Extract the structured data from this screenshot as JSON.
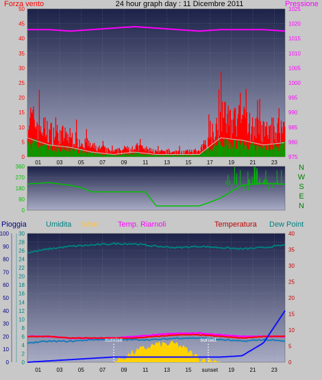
{
  "title": "24 hour graph day : 11 Dicembre 2011",
  "colors": {
    "bg": "#c8c8c8",
    "wind": "#ff0000",
    "gust": "#00a000",
    "avgwind": "#c8c8c8",
    "pressure": "#ff00ff",
    "direction": "#00c000",
    "rain": "#1010ff",
    "humidity": "#008080",
    "solar": "#ffd200",
    "feels": "#ff00ff",
    "temperature": "#ff0000",
    "dewpoint": "#1a7ab8",
    "compass": "#008000",
    "pioggia": "#000080"
  },
  "hour_ticks": [
    "01",
    "03",
    "05",
    "07",
    "09",
    "11",
    "13",
    "15",
    "17",
    "19",
    "21",
    "23"
  ],
  "bottom_hour_ticks": [
    "01",
    "03",
    "05",
    "07",
    "09",
    "11",
    "13",
    "15",
    "sunset",
    "19",
    "21",
    "23"
  ],
  "wind_panel": {
    "left_label": "Forza vento",
    "right_label": "Pressione",
    "left_axis": [
      "0",
      "5",
      "10",
      "15",
      "20",
      "25",
      "30",
      "35",
      "40",
      "45",
      "50"
    ],
    "right_axis": [
      "975",
      "980",
      "985",
      "990",
      "995",
      "1000",
      "1005",
      "1010",
      "1015",
      "1020",
      "1025"
    ],
    "pressure_avg": 1018
  },
  "direction_panel": {
    "left_axis": [
      "0",
      "90",
      "180",
      "270",
      "360"
    ],
    "compass": [
      "N",
      "W",
      "S",
      "E",
      "N"
    ]
  },
  "bottom_panel": {
    "labels": [
      "Pioggia",
      "Umidita",
      "Solar",
      "Temp. Riarnoli",
      "Temperatura",
      "Dew Point"
    ],
    "rain_axis": [
      "0",
      "10",
      "20",
      "30",
      "40",
      "50",
      "60",
      "70",
      "80",
      "90",
      "100"
    ],
    "rate_axis": [
      "0",
      "2",
      "4",
      "6",
      "8",
      "10",
      "12",
      "14",
      "16",
      "18",
      "20",
      "22",
      "24",
      "26",
      "28",
      "30"
    ],
    "temp_axis": [
      "0",
      "5",
      "10",
      "15",
      "20",
      "25",
      "30",
      "35",
      "40"
    ],
    "sunrise": "sunrise",
    "sunset": "sunset"
  },
  "chart_data": [
    {
      "type": "line",
      "title": "24 hour graph day : 11 Dicembre 2011",
      "ylabel": "Forza vento",
      "y2label": "Pressione",
      "ylim": [
        0,
        50
      ],
      "y2lim": [
        975,
        1025
      ],
      "x": [
        0,
        2,
        4,
        6,
        8,
        10,
        12,
        14,
        16,
        18,
        20,
        22,
        24
      ],
      "series": [
        {
          "name": "Forza vento",
          "values": [
            8,
            5,
            4,
            2,
            1,
            2,
            1,
            1,
            1,
            8,
            7,
            5,
            6
          ]
        },
        {
          "name": "Pressione",
          "values": [
            1018,
            1018,
            1017.5,
            1018,
            1018.5,
            1019,
            1018.5,
            1018,
            1017.5,
            1018,
            1018,
            1018,
            1017.5
          ]
        }
      ]
    },
    {
      "type": "line",
      "ylim": [
        0,
        360
      ],
      "x": [
        0,
        2,
        4,
        5,
        6,
        8,
        10,
        11,
        12,
        14,
        16,
        17,
        18,
        20,
        22,
        24
      ],
      "series": [
        {
          "values": [
            225,
            220,
            205,
            185,
            150,
            150,
            150,
            150,
            35,
            35,
            35,
            65,
            100,
            210,
            220,
            215
          ]
        }
      ]
    },
    {
      "type": "line",
      "ylabel": "Pioggia",
      "y2label": "Temperatura",
      "ylim": [
        0,
        100
      ],
      "y2lim": [
        0,
        40
      ],
      "x": [
        0,
        2,
        4,
        6,
        8,
        10,
        12,
        14,
        16,
        18,
        20,
        22,
        24
      ],
      "series": [
        {
          "name": "Umidita",
          "values": [
            85,
            88,
            90,
            91,
            92,
            92,
            90,
            89,
            90,
            89,
            88,
            89,
            91
          ]
        },
        {
          "name": "Solar",
          "values": [
            0,
            0,
            0,
            0,
            0,
            8,
            14,
            14,
            3,
            0,
            0,
            0,
            0
          ]
        },
        {
          "name": "Temp. Riarnoli",
          "values": [
            8,
            8,
            7.5,
            7.5,
            7.5,
            8,
            8.5,
            9,
            9,
            8.5,
            8,
            8,
            8
          ]
        },
        {
          "name": "Temperatura",
          "values": [
            8,
            8,
            7.5,
            7.5,
            7.5,
            7.5,
            8,
            8.5,
            8.5,
            8,
            7.5,
            8,
            8
          ]
        },
        {
          "name": "Dew Point",
          "values": [
            6,
            6.5,
            6.5,
            7,
            7,
            7,
            7,
            7.5,
            7.5,
            7,
            6.5,
            7,
            6.5
          ]
        },
        {
          "name": "Pioggia",
          "values": [
            0,
            1,
            2,
            3,
            4,
            4,
            4,
            4,
            4,
            4,
            5,
            15,
            40
          ]
        }
      ]
    }
  ]
}
